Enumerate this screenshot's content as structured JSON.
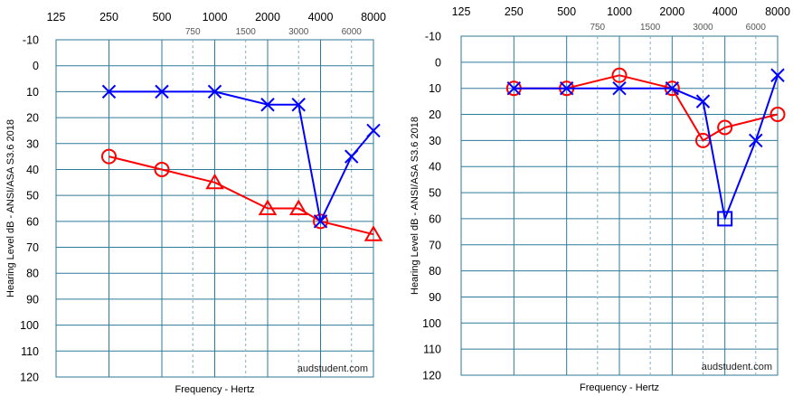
{
  "page": {
    "background": "#ffffff"
  },
  "style": {
    "grid_color": "#2e7a99",
    "dashed_grid_color": "#7faec5",
    "right_ear_color": "#ff0000",
    "left_ear_color": "#0000ff"
  },
  "chart_data": [
    {
      "type": "line",
      "title": "",
      "xlabel": "Frequency - Hertz",
      "ylabel": "Hearing Level dB - ANSI/ASA S3.6 2018",
      "watermark": "audstudent.com",
      "x_scale": "log",
      "major_ticks": [
        125,
        250,
        500,
        1000,
        2000,
        4000,
        8000
      ],
      "minor_ticks": [
        750,
        1500,
        3000,
        6000
      ],
      "y_ticks": [
        -10,
        0,
        10,
        20,
        30,
        40,
        50,
        60,
        70,
        80,
        90,
        100,
        110,
        120
      ],
      "ylim": [
        -10,
        120
      ],
      "y_inverted": true,
      "grid": true,
      "series": [
        {
          "color": "#ff0000",
          "points": [
            {
              "x": 250,
              "y": 35,
              "marker": "circle"
            },
            {
              "x": 500,
              "y": 40,
              "marker": "circle"
            },
            {
              "x": 1000,
              "y": 45,
              "marker": "triangle"
            },
            {
              "x": 2000,
              "y": 55,
              "marker": "triangle"
            },
            {
              "x": 3000,
              "y": 55,
              "marker": "triangle"
            },
            {
              "x": 4000,
              "y": 60,
              "marker": "circle"
            },
            {
              "x": 8000,
              "y": 65,
              "marker": "triangle"
            }
          ]
        },
        {
          "color": "#0000ff",
          "points": [
            {
              "x": 250,
              "y": 10,
              "marker": "x"
            },
            {
              "x": 500,
              "y": 10,
              "marker": "x"
            },
            {
              "x": 1000,
              "y": 10,
              "marker": "x"
            },
            {
              "x": 2000,
              "y": 15,
              "marker": "x"
            },
            {
              "x": 3000,
              "y": 15,
              "marker": "x"
            },
            {
              "x": 4000,
              "y": 60,
              "marker": "x"
            },
            {
              "x": 6000,
              "y": 35,
              "marker": "x"
            },
            {
              "x": 8000,
              "y": 25,
              "marker": "x"
            }
          ]
        }
      ]
    },
    {
      "type": "line",
      "title": "",
      "xlabel": "Frequency - Hertz",
      "ylabel": "Hearing Level dB - ANSI/ASA S3.6 2018",
      "watermark": "audstudent.com",
      "x_scale": "log",
      "major_ticks": [
        125,
        250,
        500,
        1000,
        2000,
        4000,
        8000
      ],
      "minor_ticks": [
        750,
        1500,
        3000,
        6000
      ],
      "y_ticks": [
        -10,
        0,
        10,
        20,
        30,
        40,
        50,
        60,
        70,
        80,
        90,
        100,
        110,
        120
      ],
      "ylim": [
        -10,
        120
      ],
      "y_inverted": true,
      "grid": true,
      "series": [
        {
          "color": "#ff0000",
          "points": [
            {
              "x": 250,
              "y": 10,
              "marker": "circle"
            },
            {
              "x": 500,
              "y": 10,
              "marker": "circle"
            },
            {
              "x": 1000,
              "y": 5,
              "marker": "circle"
            },
            {
              "x": 2000,
              "y": 10,
              "marker": "circle"
            },
            {
              "x": 3000,
              "y": 30,
              "marker": "circle"
            },
            {
              "x": 4000,
              "y": 25,
              "marker": "circle"
            },
            {
              "x": 8000,
              "y": 20,
              "marker": "circle"
            }
          ]
        },
        {
          "color": "#0000ff",
          "points": [
            {
              "x": 250,
              "y": 10,
              "marker": "x"
            },
            {
              "x": 500,
              "y": 10,
              "marker": "x"
            },
            {
              "x": 1000,
              "y": 10,
              "marker": "x"
            },
            {
              "x": 2000,
              "y": 10,
              "marker": "x"
            },
            {
              "x": 3000,
              "y": 15,
              "marker": "x"
            },
            {
              "x": 4000,
              "y": 60,
              "marker": "square"
            },
            {
              "x": 6000,
              "y": 30,
              "marker": "x"
            },
            {
              "x": 8000,
              "y": 5,
              "marker": "x"
            }
          ]
        }
      ]
    }
  ]
}
